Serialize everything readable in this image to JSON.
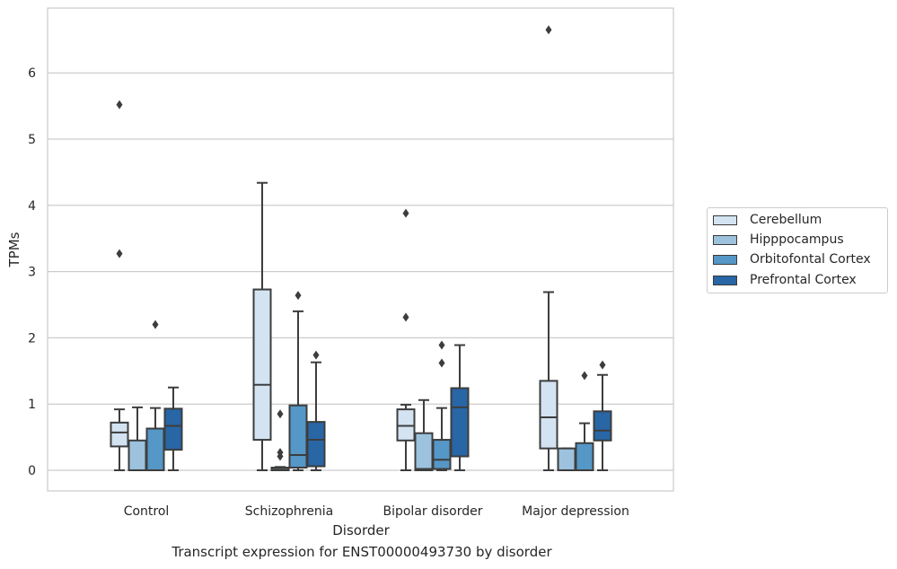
{
  "chart_data": {
    "type": "box",
    "xlabel": "Disorder",
    "ylabel": "TPMs",
    "categories": [
      "Control",
      "Schizophrenia",
      "Bipolar disorder",
      "Major depression"
    ],
    "ylim": [
      -0.33,
      7.0
    ],
    "yticks": [
      0,
      1,
      2,
      3,
      4,
      5,
      6
    ],
    "grid": true,
    "legend_position": "right",
    "series": [
      {
        "name": "Cerebellum",
        "color": "#d3e3f2",
        "boxes": [
          {
            "whisker_low": 0.0,
            "q1": 0.36,
            "median": 0.57,
            "q3": 0.72,
            "whisker_high": 0.92,
            "outliers": [
              3.27,
              5.52
            ]
          },
          {
            "whisker_low": 0.0,
            "q1": 0.46,
            "median": 1.29,
            "q3": 2.73,
            "whisker_high": 4.34,
            "outliers": []
          },
          {
            "whisker_low": 0.0,
            "q1": 0.45,
            "median": 0.67,
            "q3": 0.92,
            "whisker_high": 0.99,
            "outliers": [
              2.31,
              3.88
            ]
          },
          {
            "whisker_low": 0.0,
            "q1": 0.33,
            "median": 0.8,
            "q3": 1.35,
            "whisker_high": 2.69,
            "outliers": [
              6.65
            ]
          }
        ]
      },
      {
        "name": "Hipppocampus",
        "color": "#9cc2dd",
        "boxes": [
          {
            "whisker_low": 0.0,
            "q1": 0.0,
            "median": 0.0,
            "q3": 0.45,
            "whisker_high": 0.95,
            "outliers": []
          },
          {
            "whisker_low": 0.0,
            "q1": 0.0,
            "median": 0.01,
            "q3": 0.04,
            "whisker_high": 0.05,
            "outliers": [
              0.21,
              0.27,
              0.85
            ]
          },
          {
            "whisker_low": 0.0,
            "q1": 0.0,
            "median": 0.02,
            "q3": 0.56,
            "whisker_high": 1.06,
            "outliers": []
          },
          {
            "whisker_low": 0.0,
            "q1": 0.0,
            "median": 0.0,
            "q3": 0.33,
            "whisker_high": 0.33,
            "outliers": []
          }
        ]
      },
      {
        "name": "Orbitofontal Cortex",
        "color": "#5597c6",
        "boxes": [
          {
            "whisker_low": 0.0,
            "q1": 0.0,
            "median": 0.0,
            "q3": 0.63,
            "whisker_high": 0.94,
            "outliers": [
              2.2
            ]
          },
          {
            "whisker_low": 0.0,
            "q1": 0.04,
            "median": 0.23,
            "q3": 0.98,
            "whisker_high": 2.4,
            "outliers": [
              2.64
            ]
          },
          {
            "whisker_low": 0.0,
            "q1": 0.02,
            "median": 0.16,
            "q3": 0.46,
            "whisker_high": 0.94,
            "outliers": [
              1.62,
              1.89
            ]
          },
          {
            "whisker_low": 0.0,
            "q1": 0.0,
            "median": 0.0,
            "q3": 0.41,
            "whisker_high": 0.71,
            "outliers": [
              1.43
            ]
          }
        ]
      },
      {
        "name": "Prefrontal Cortex",
        "color": "#2866a6",
        "boxes": [
          {
            "whisker_low": 0.0,
            "q1": 0.31,
            "median": 0.67,
            "q3": 0.93,
            "whisker_high": 1.25,
            "outliers": []
          },
          {
            "whisker_low": 0.0,
            "q1": 0.06,
            "median": 0.46,
            "q3": 0.73,
            "whisker_high": 1.63,
            "outliers": [
              1.74
            ]
          },
          {
            "whisker_low": 0.0,
            "q1": 0.21,
            "median": 0.95,
            "q3": 1.24,
            "whisker_high": 1.89,
            "outliers": []
          },
          {
            "whisker_low": 0.0,
            "q1": 0.45,
            "median": 0.6,
            "q3": 0.89,
            "whisker_high": 1.44,
            "outliers": [
              1.59
            ]
          }
        ]
      }
    ]
  },
  "caption": "Transcript expression for ENST00000493730 by disorder"
}
